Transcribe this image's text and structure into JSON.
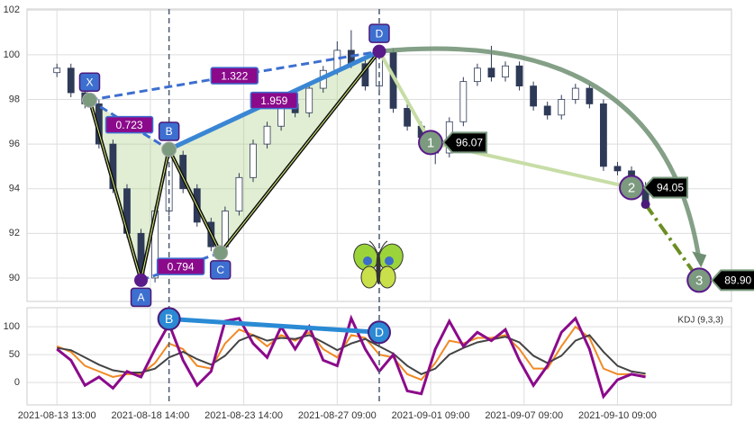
{
  "chart_data": [
    {
      "type": "candlestick",
      "x": [
        0,
        3,
        6,
        9,
        12,
        15,
        18,
        21,
        24,
        27,
        30,
        33,
        36,
        39,
        42,
        45,
        48,
        51,
        54,
        57,
        60,
        63,
        66,
        69,
        72,
        75,
        78,
        81,
        84,
        87,
        90,
        93,
        96,
        99,
        102,
        105,
        108,
        111,
        114,
        117,
        120,
        123,
        126
      ],
      "open": [
        99.2,
        99.4,
        98.3,
        97.8,
        96.0,
        94.0,
        92.0,
        90.0,
        93.0,
        95.5,
        94.0,
        92.5,
        91.4,
        93.0,
        94.5,
        96.0,
        96.8,
        97.8,
        97.4,
        98.5,
        99.3,
        100.2,
        99.6,
        98.6,
        100.1,
        97.6,
        96.8,
        96.3,
        95.6,
        97.0,
        98.8,
        99.4,
        99.0,
        99.5,
        98.6,
        97.7,
        97.3,
        98.0,
        98.5,
        97.8,
        95.0,
        94.8,
        94.1
      ],
      "high": [
        99.6,
        99.6,
        98.5,
        98.0,
        96.2,
        94.2,
        92.2,
        93.2,
        95.8,
        95.7,
        94.2,
        92.7,
        93.2,
        94.7,
        96.2,
        97.0,
        98.0,
        98.2,
        98.7,
        99.5,
        100.6,
        101.1,
        99.8,
        100.2,
        100.3,
        97.8,
        97.0,
        96.5,
        97.2,
        99.0,
        99.6,
        100.4,
        99.7,
        99.7,
        98.8,
        97.9,
        98.2,
        98.7,
        98.7,
        98.0,
        95.2,
        95.0,
        94.3
      ],
      "low": [
        99.0,
        98.1,
        97.6,
        95.8,
        93.8,
        91.8,
        89.9,
        89.8,
        92.8,
        93.8,
        92.3,
        91.2,
        91.1,
        92.8,
        94.3,
        95.8,
        96.6,
        97.2,
        97.2,
        98.3,
        99.1,
        99.4,
        98.4,
        98.4,
        97.4,
        96.6,
        96.1,
        95.1,
        95.4,
        96.8,
        98.6,
        98.8,
        98.8,
        98.4,
        97.5,
        97.1,
        97.1,
        97.8,
        97.6,
        94.8,
        94.6,
        93.9,
        93.1
      ],
      "close": [
        99.4,
        98.3,
        97.8,
        96.0,
        94.0,
        92.0,
        90.0,
        93.0,
        95.5,
        94.0,
        92.5,
        91.4,
        93.0,
        94.5,
        96.0,
        96.8,
        97.8,
        97.4,
        98.5,
        99.3,
        100.2,
        99.6,
        98.6,
        100.1,
        97.6,
        96.8,
        96.3,
        95.6,
        97.0,
        98.8,
        99.4,
        99.0,
        99.5,
        98.6,
        97.7,
        97.3,
        98.0,
        98.5,
        97.8,
        95.0,
        94.8,
        94.1,
        93.3
      ],
      "up_color": "#ffffff",
      "down_color": "#2e3a57",
      "xlim": [
        -6.4,
        144.4
      ],
      "xticks": [
        {
          "value": 0,
          "label": "2021-08-13 13:00"
        },
        {
          "value": 20,
          "label": "2021-08-18 14:00"
        },
        {
          "value": 40,
          "label": "2021-08-23 14:00"
        },
        {
          "value": 60,
          "label": "2021-08-27 09:00"
        },
        {
          "value": 80,
          "label": "2021-09-01 09:00"
        },
        {
          "value": 100,
          "label": "2021-09-07 09:00"
        },
        {
          "value": 120,
          "label": "2021-09-10 09:00"
        }
      ],
      "ylim": [
        88.95,
        102.05
      ],
      "yticks": [
        90,
        92,
        94,
        96,
        98,
        100,
        102
      ],
      "grid": true,
      "markers_x": [
        24,
        69
      ],
      "pattern": {
        "labels": [
          "X",
          "A",
          "B",
          "C",
          "D"
        ],
        "x": [
          7,
          18,
          24,
          35,
          69
        ],
        "values": [
          97.97,
          89.9,
          95.76,
          91.13,
          100.15
        ]
      },
      "ratios": [
        0.723,
        1.322,
        1.959,
        0.794
      ],
      "targets": {
        "labels": [
          "1",
          "2",
          "3"
        ],
        "x": [
          80,
          123,
          137.5
        ],
        "values": [
          96.07,
          94.05,
          89.9
        ],
        "value_labels": [
          "96.07",
          "94.05",
          "89.90"
        ]
      }
    },
    {
      "type": "line",
      "title": "KDJ (9,3,3)",
      "x": [
        0,
        3,
        6,
        9,
        12,
        15,
        18,
        21,
        24,
        27,
        30,
        33,
        36,
        39,
        42,
        45,
        48,
        51,
        54,
        57,
        60,
        63,
        66,
        69,
        72,
        75,
        78,
        81,
        84,
        87,
        90,
        93,
        96,
        99,
        102,
        105,
        108,
        111,
        114,
        117,
        120,
        123,
        126
      ],
      "series": [
        {
          "color": "#f08a24",
          "values": [
            65,
            55,
            30,
            20,
            10,
            15,
            15,
            35,
            70,
            60,
            30,
            25,
            70,
            95,
            85,
            65,
            85,
            75,
            90,
            60,
            45,
            85,
            80,
            50,
            45,
            15,
            5,
            35,
            75,
            70,
            80,
            80,
            85,
            60,
            25,
            25,
            65,
            100,
            80,
            25,
            15,
            15,
            12
          ]
        },
        {
          "color": "#444444",
          "values": [
            62,
            58,
            45,
            32,
            22,
            18,
            18,
            25,
            45,
            55,
            42,
            32,
            48,
            75,
            85,
            75,
            80,
            78,
            85,
            72,
            58,
            70,
            78,
            65,
            52,
            30,
            15,
            25,
            50,
            62,
            72,
            77,
            82,
            72,
            48,
            35,
            48,
            75,
            85,
            55,
            30,
            20,
            16
          ]
        },
        {
          "color": "#8b0a8b",
          "values": [
            60,
            40,
            -5,
            10,
            -10,
            20,
            10,
            60,
            105,
            40,
            -5,
            20,
            110,
            115,
            70,
            45,
            100,
            60,
            100,
            40,
            30,
            115,
            60,
            20,
            50,
            -15,
            -20,
            60,
            110,
            65,
            90,
            75,
            95,
            40,
            -5,
            30,
            90,
            115,
            60,
            -25,
            5,
            15,
            10
          ]
        }
      ],
      "ylim": [
        -40,
        134
      ],
      "yticks": [
        0,
        50,
        100
      ],
      "grid": true,
      "pattern": {
        "labels": [
          "B",
          "D"
        ],
        "x": [
          24,
          69
        ],
        "values": [
          114,
          90
        ]
      }
    }
  ]
}
